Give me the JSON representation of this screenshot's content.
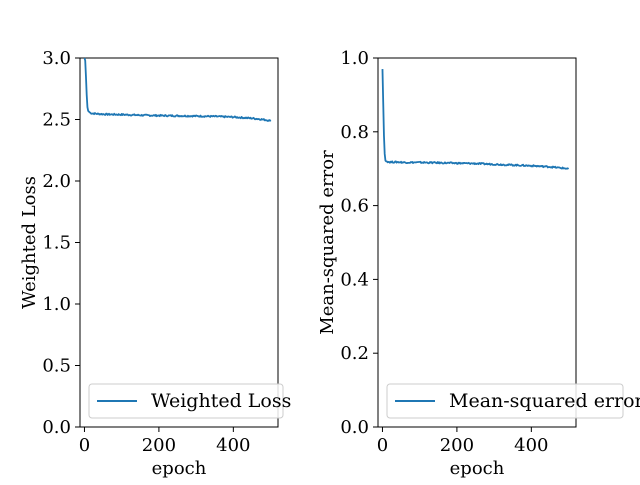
{
  "chart_data": [
    {
      "type": "line",
      "xlabel": "epoch",
      "ylabel": "Weighted Loss",
      "xlim": [
        -12,
        520
      ],
      "ylim": [
        0,
        3.0
      ],
      "xticks": [
        0,
        200,
        400
      ],
      "xtick_labels": [
        "0",
        "200",
        "400"
      ],
      "yticks": [
        0,
        0.5,
        1.0,
        1.5,
        2.0,
        2.5,
        3.0
      ],
      "ytick_labels": [
        "0.0",
        "0.5",
        "1.0",
        "1.5",
        "2.0",
        "2.5",
        "3.0"
      ],
      "grid": false,
      "legend": {
        "position": "lower-right"
      },
      "series": [
        {
          "name": "Weighted Loss",
          "color": "#1f77b4",
          "x": [
            0,
            2,
            4,
            6,
            8,
            10,
            15,
            20,
            40,
            60,
            100,
            150,
            200,
            250,
            300,
            350,
            400,
            450,
            480,
            500
          ],
          "y": [
            3.05,
            2.98,
            2.85,
            2.7,
            2.6,
            2.57,
            2.555,
            2.55,
            2.545,
            2.542,
            2.54,
            2.535,
            2.532,
            2.53,
            2.528,
            2.525,
            2.52,
            2.51,
            2.5,
            2.49
          ]
        }
      ]
    },
    {
      "type": "line",
      "xlabel": "epoch",
      "ylabel": "Mean-squared error",
      "xlim": [
        -12,
        520
      ],
      "ylim": [
        0,
        1.0
      ],
      "xticks": [
        0,
        200,
        400
      ],
      "xtick_labels": [
        "0",
        "200",
        "400"
      ],
      "yticks": [
        0,
        0.2,
        0.4,
        0.6,
        0.8,
        1.0
      ],
      "ytick_labels": [
        "0.0",
        "0.2",
        "0.4",
        "0.6",
        "0.8",
        "1.0"
      ],
      "grid": false,
      "legend": {
        "position": "lower-right"
      },
      "series": [
        {
          "name": "Mean-squared error",
          "color": "#1f77b4",
          "x": [
            0,
            1,
            2,
            3,
            4,
            5,
            6,
            7,
            8,
            10,
            15,
            20,
            40,
            60,
            100,
            150,
            200,
            250,
            300,
            350,
            400,
            450,
            480,
            500
          ],
          "y": [
            0.97,
            0.93,
            0.88,
            0.83,
            0.79,
            0.76,
            0.74,
            0.727,
            0.722,
            0.72,
            0.719,
            0.718,
            0.718,
            0.717,
            0.717,
            0.716,
            0.715,
            0.714,
            0.712,
            0.71,
            0.708,
            0.705,
            0.702,
            0.7
          ]
        }
      ]
    }
  ]
}
